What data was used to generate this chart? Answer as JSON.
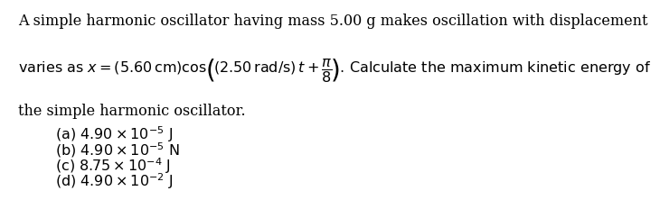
{
  "bg_color": "#ffffff",
  "text_color": "#000000",
  "line1": "A simple harmonic oscillator having mass 5.00 g makes oscillation with displacement",
  "line3": "the simple harmonic oscillator.",
  "options_math": [
    "(a) $4.90\\times10^{-5}$ J",
    "(b) $4.90\\times10^{-5}$ N",
    "(c) $8.75\\times10^{-4}$ J",
    "(d) $4.90\\times10^{-2}$ J"
  ],
  "font_size_main": 11.5,
  "fig_width": 6.57,
  "fig_height": 2.14
}
